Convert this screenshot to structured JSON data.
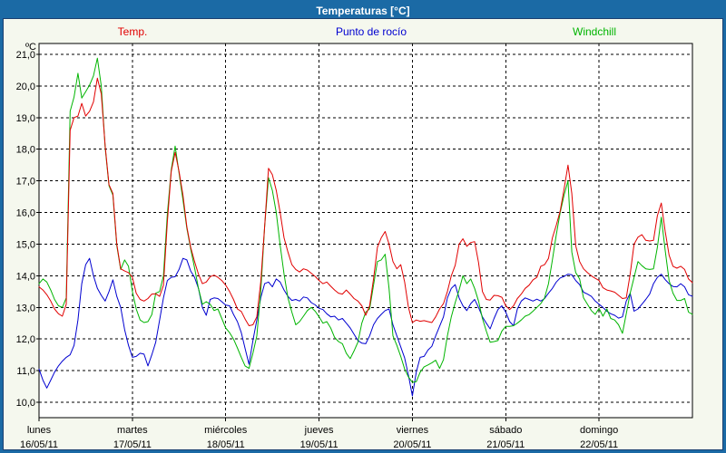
{
  "window": {
    "title": "Temperaturas [°C]"
  },
  "legend": [
    {
      "label": "Temp.",
      "color": "#e10000"
    },
    {
      "label": "Punto de rocío",
      "color": "#0000d0"
    },
    {
      "label": "Windchill",
      "color": "#00b400"
    }
  ],
  "y_axis": {
    "unit_label": "ºC",
    "tick_labels": [
      "21,0",
      "20,0",
      "19,0",
      "18,0",
      "17,0",
      "16,0",
      "15,0",
      "14,0",
      "13,0",
      "12,0",
      "11,0",
      "10,0"
    ],
    "tick_values": [
      21,
      20,
      19,
      18,
      17,
      16,
      15,
      14,
      13,
      12,
      11,
      10
    ]
  },
  "x_axis": {
    "days": [
      {
        "name": "lunes",
        "date": "16/05/11"
      },
      {
        "name": "martes",
        "date": "17/05/11"
      },
      {
        "name": "miércoles",
        "date": "18/05/11"
      },
      {
        "name": "jueves",
        "date": "19/05/11"
      },
      {
        "name": "viernes",
        "date": "20/05/11"
      },
      {
        "name": "sábado",
        "date": "21/05/11"
      },
      {
        "name": "domingo",
        "date": "22/05/11"
      }
    ]
  },
  "chart_data": {
    "type": "line",
    "title": "Temperaturas [°C]",
    "ylabel": "ºC",
    "ylim": [
      10,
      21
    ],
    "grid": "dashed",
    "legend_position": "top",
    "sampling": "hourly",
    "x_hours_total": 168,
    "x_days": [
      "16/05/11",
      "17/05/11",
      "18/05/11",
      "19/05/11",
      "20/05/11",
      "21/05/11",
      "22/05/11"
    ],
    "series": [
      {
        "id": "temp-line",
        "name": "Temp.",
        "color": "#e10000",
        "z": 3,
        "values": [
          13.65,
          13.55,
          13.4,
          13.2,
          12.95,
          12.8,
          12.72,
          13.1,
          18.6,
          19.0,
          19.05,
          19.45,
          19.05,
          19.2,
          19.5,
          20.25,
          19.75,
          18.1,
          16.88,
          16.6,
          15.0,
          14.22,
          14.15,
          14.1,
          13.95,
          13.45,
          13.25,
          13.2,
          13.28,
          13.42,
          13.43,
          13.35,
          13.7,
          15.7,
          17.3,
          17.9,
          17.3,
          16.55,
          15.55,
          14.9,
          14.45,
          14.05,
          13.75,
          13.8,
          13.97,
          14.02,
          13.95,
          13.85,
          13.7,
          13.5,
          13.25,
          12.95,
          12.87,
          12.63,
          12.42,
          12.45,
          12.7,
          13.8,
          15.55,
          17.4,
          17.2,
          16.7,
          16.0,
          15.2,
          14.75,
          14.35,
          14.2,
          14.12,
          14.22,
          14.18,
          14.08,
          13.98,
          13.85,
          13.75,
          13.8,
          13.67,
          13.55,
          13.45,
          13.42,
          13.55,
          13.42,
          13.28,
          13.2,
          13.05,
          12.75,
          13.05,
          13.9,
          14.9,
          15.2,
          15.4,
          15.0,
          14.45,
          14.22,
          14.35,
          13.8,
          13.0,
          12.52,
          12.6,
          12.56,
          12.58,
          12.55,
          12.52,
          12.7,
          12.95,
          13.12,
          13.5,
          14.0,
          14.33,
          15.0,
          15.17,
          14.93,
          15.05,
          15.08,
          14.42,
          13.5,
          13.25,
          13.23,
          13.38,
          13.37,
          13.32,
          13.05,
          12.93,
          13.05,
          13.28,
          13.42,
          13.6,
          13.7,
          13.87,
          13.95,
          14.3,
          14.35,
          14.55,
          15.2,
          15.6,
          16.05,
          16.75,
          17.5,
          16.6,
          14.95,
          14.45,
          14.22,
          14.1,
          14.0,
          13.92,
          13.85,
          13.62,
          13.55,
          13.52,
          13.48,
          13.38,
          13.28,
          13.3,
          14.05,
          15.0,
          15.22,
          15.3,
          15.12,
          15.1,
          15.12,
          15.9,
          16.3,
          15.4,
          14.65,
          14.3,
          14.24,
          14.3,
          14.2,
          13.9,
          13.78
        ]
      },
      {
        "id": "dewpoint-line",
        "name": "Punto de rocío",
        "color": "#0000d0",
        "z": 1,
        "values": [
          11.05,
          10.7,
          10.45,
          10.7,
          10.95,
          11.15,
          11.3,
          11.42,
          11.5,
          11.8,
          12.6,
          13.75,
          14.35,
          14.55,
          14.0,
          13.6,
          13.38,
          13.2,
          13.5,
          13.87,
          13.35,
          13.0,
          12.3,
          11.8,
          11.42,
          11.45,
          11.55,
          11.52,
          11.15,
          11.5,
          11.9,
          12.6,
          13.3,
          13.85,
          13.95,
          13.97,
          14.2,
          14.55,
          14.5,
          14.15,
          13.95,
          13.6,
          13.0,
          12.75,
          13.25,
          13.3,
          13.28,
          13.18,
          13.07,
          13.05,
          12.78,
          12.55,
          12.2,
          11.7,
          11.2,
          11.95,
          12.6,
          13.3,
          13.75,
          13.8,
          13.65,
          13.9,
          13.8,
          13.55,
          13.35,
          13.22,
          13.25,
          13.2,
          13.33,
          13.3,
          13.15,
          13.08,
          12.97,
          12.93,
          12.8,
          12.7,
          12.72,
          12.6,
          12.65,
          12.5,
          12.35,
          12.15,
          11.95,
          11.87,
          11.85,
          12.1,
          12.45,
          12.65,
          12.78,
          12.9,
          12.95,
          12.45,
          12.1,
          11.75,
          11.4,
          10.85,
          10.2,
          10.95,
          11.42,
          11.45,
          11.65,
          11.77,
          12.1,
          12.4,
          12.7,
          13.3,
          13.6,
          13.72,
          13.3,
          13.05,
          12.9,
          13.12,
          13.25,
          13.0,
          12.7,
          12.5,
          12.32,
          12.65,
          12.93,
          13.05,
          12.85,
          12.55,
          12.42,
          12.95,
          13.2,
          13.3,
          13.25,
          13.2,
          13.26,
          13.2,
          13.28,
          13.45,
          13.6,
          13.8,
          13.93,
          13.98,
          14.05,
          14.03,
          13.85,
          13.72,
          13.48,
          13.42,
          13.35,
          13.2,
          13.1,
          13.0,
          12.88,
          12.8,
          12.75,
          12.66,
          12.7,
          13.2,
          13.45,
          12.88,
          12.95,
          13.1,
          13.25,
          13.42,
          13.75,
          13.95,
          14.05,
          13.88,
          13.75,
          13.66,
          13.65,
          13.75,
          13.65,
          13.4,
          13.35
        ]
      },
      {
        "id": "windchill-line",
        "name": "Windchill",
        "color": "#00b400",
        "z": 2,
        "values": [
          13.75,
          13.9,
          13.8,
          13.55,
          13.25,
          13.05,
          13.0,
          13.3,
          19.2,
          19.65,
          20.4,
          19.62,
          19.82,
          20.03,
          20.32,
          20.88,
          20.0,
          18.05,
          16.85,
          16.55,
          14.95,
          14.2,
          14.5,
          14.3,
          13.5,
          12.95,
          12.6,
          12.52,
          12.55,
          12.77,
          13.45,
          13.5,
          14.0,
          15.95,
          17.35,
          18.1,
          17.25,
          16.4,
          15.5,
          14.85,
          14.25,
          13.6,
          13.1,
          13.18,
          13.1,
          12.9,
          12.95,
          12.65,
          12.35,
          12.2,
          12.0,
          11.72,
          11.42,
          11.15,
          11.07,
          11.55,
          12.1,
          13.5,
          15.55,
          17.1,
          16.7,
          16.0,
          14.97,
          14.05,
          13.3,
          12.85,
          12.45,
          12.55,
          12.72,
          12.9,
          13.0,
          12.88,
          12.7,
          12.5,
          12.55,
          12.35,
          12.05,
          11.92,
          11.85,
          11.55,
          11.38,
          11.62,
          11.9,
          12.5,
          12.85,
          12.95,
          13.7,
          14.45,
          14.5,
          14.68,
          13.6,
          12.1,
          11.8,
          11.45,
          11.05,
          10.8,
          10.63,
          10.65,
          10.95,
          11.12,
          11.18,
          11.25,
          11.33,
          11.07,
          11.35,
          12.1,
          12.7,
          13.15,
          13.55,
          14.0,
          13.75,
          13.9,
          13.6,
          13.2,
          12.65,
          12.25,
          11.9,
          11.92,
          11.95,
          12.25,
          12.4,
          12.4,
          12.42,
          12.5,
          12.6,
          12.72,
          12.77,
          12.88,
          13.0,
          13.12,
          13.3,
          13.75,
          14.5,
          15.3,
          16.0,
          16.55,
          17.0,
          14.75,
          14.1,
          13.9,
          13.3,
          13.1,
          12.9,
          12.78,
          12.97,
          12.72,
          12.95,
          12.65,
          12.6,
          12.45,
          12.18,
          12.8,
          13.45,
          13.95,
          14.45,
          14.32,
          14.22,
          14.2,
          14.22,
          14.9,
          15.85,
          14.8,
          13.85,
          13.45,
          13.22,
          13.22,
          13.28,
          12.85,
          12.78
        ]
      }
    ]
  }
}
